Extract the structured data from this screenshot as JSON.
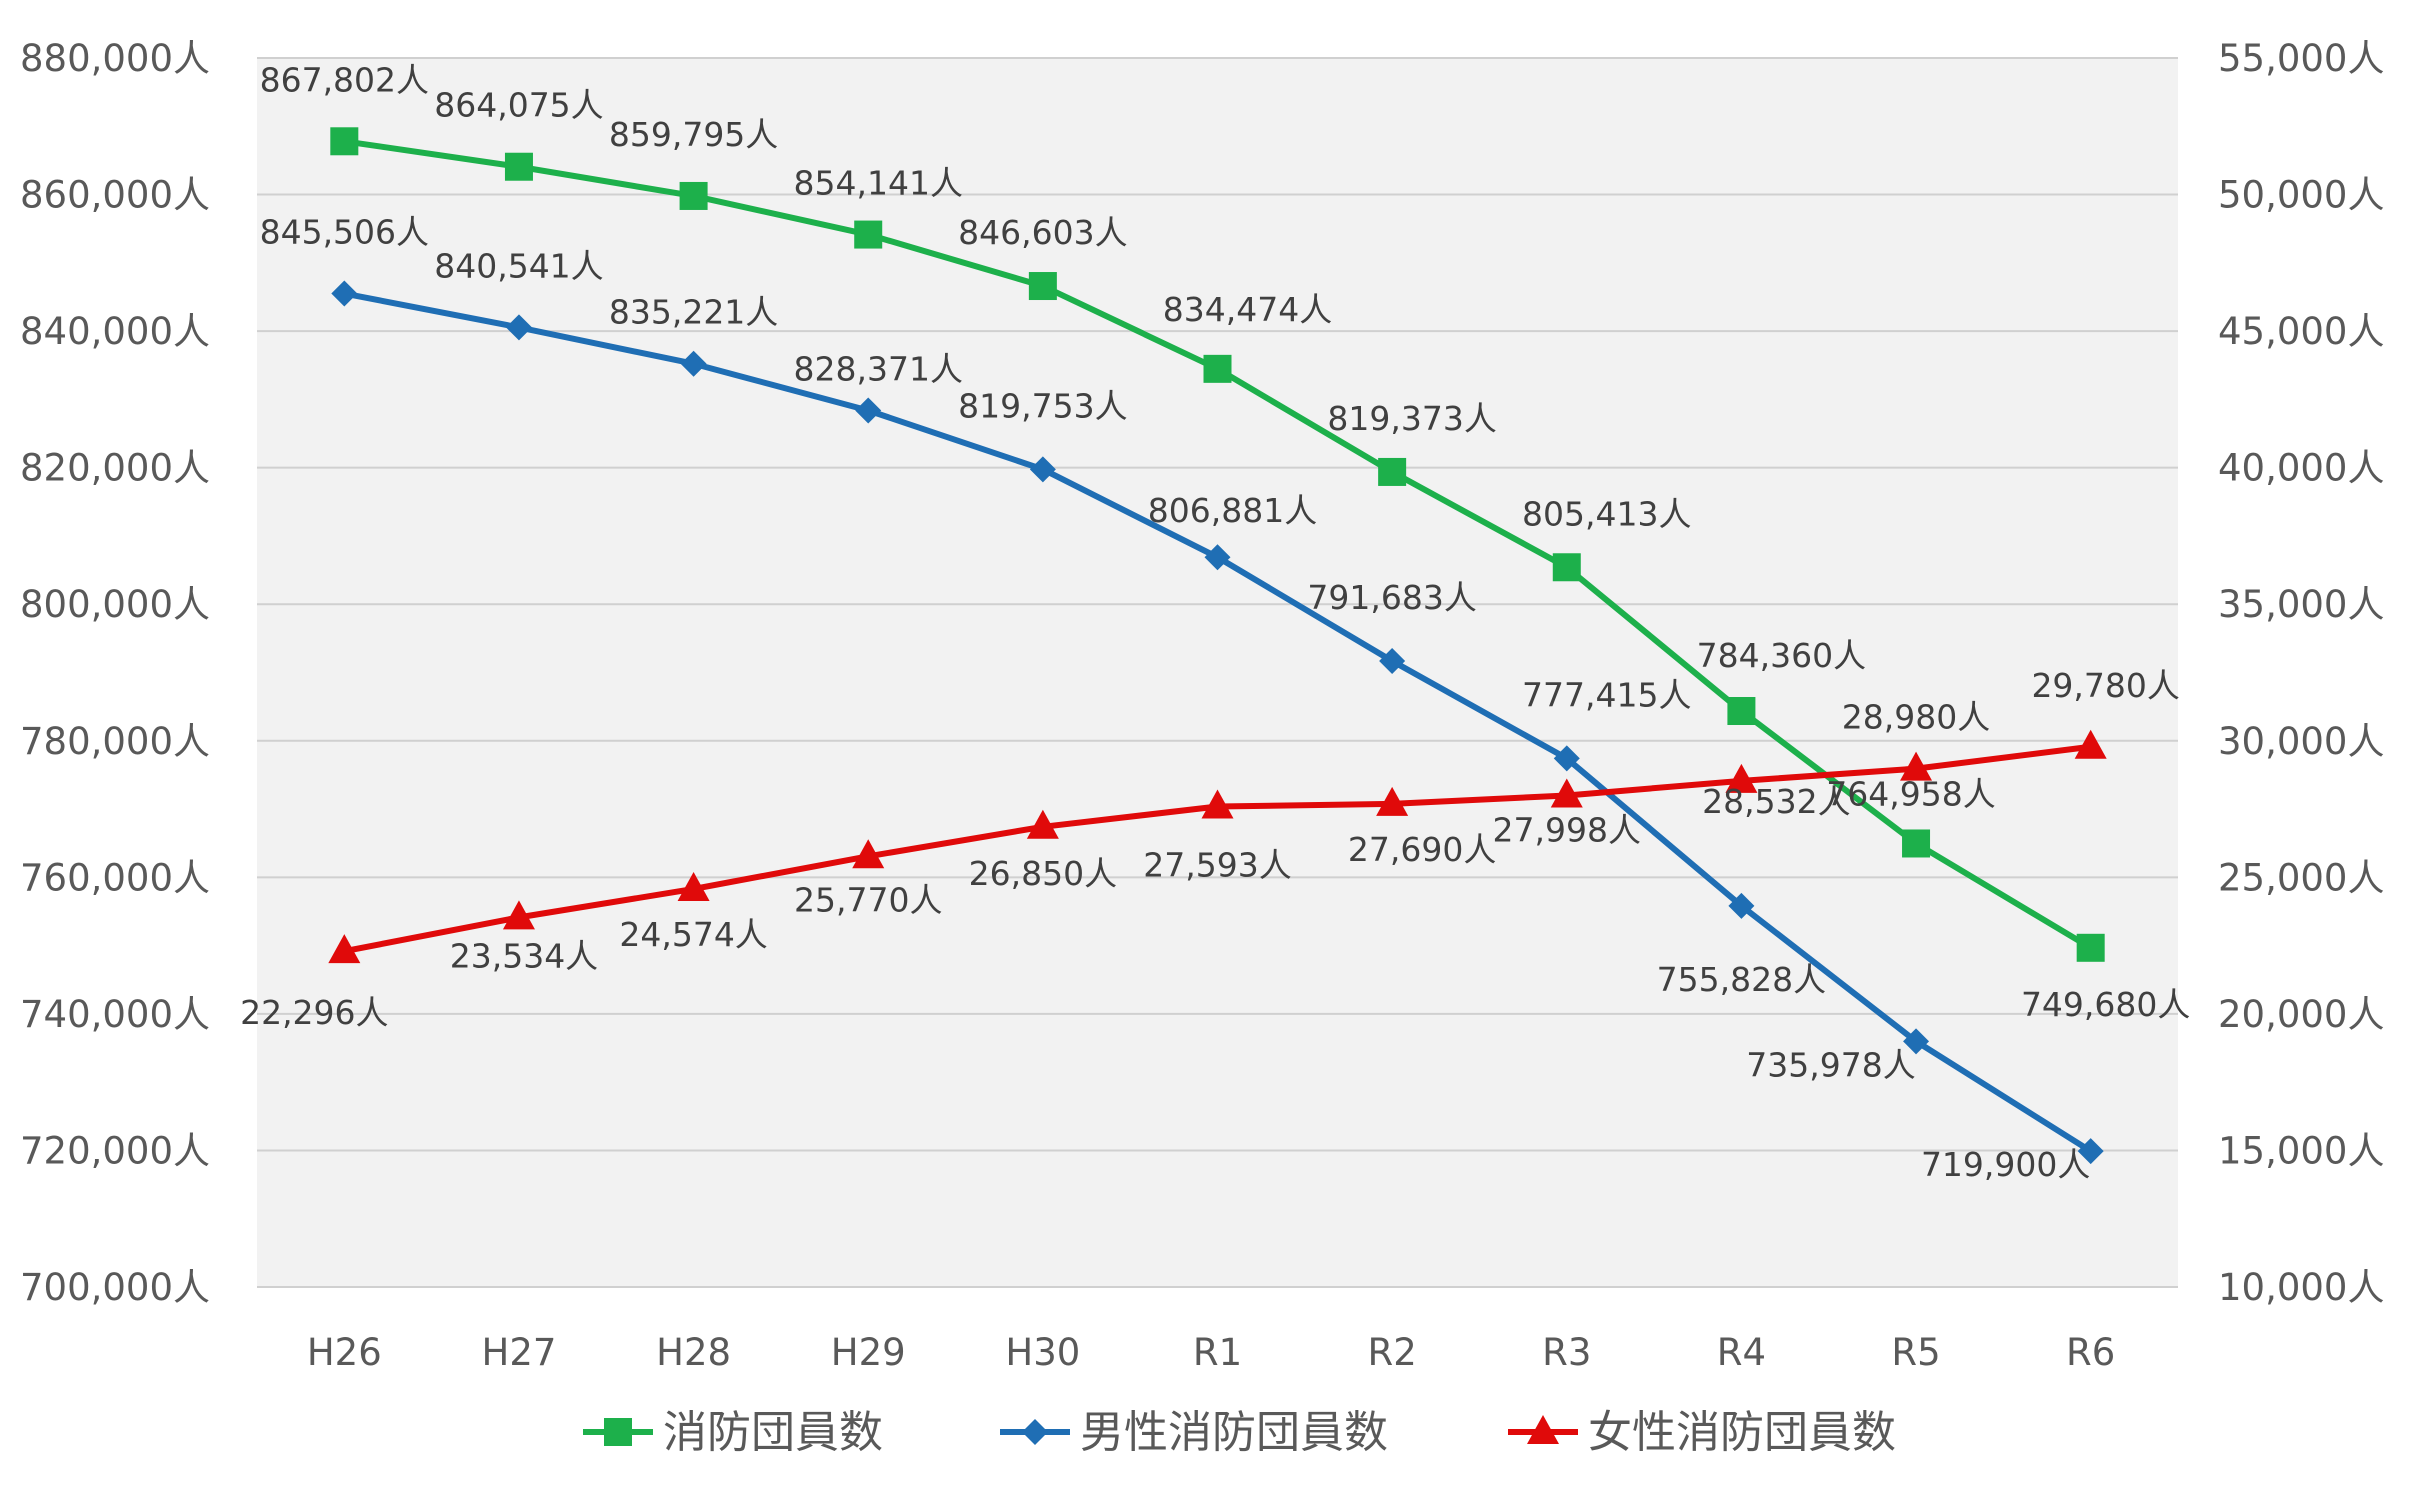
{
  "chart_data": {
    "type": "line",
    "title": "",
    "categories": [
      "H26",
      "H27",
      "H28",
      "H29",
      "H30",
      "R1",
      "R2",
      "R3",
      "R4",
      "R5",
      "R6"
    ],
    "unit_suffix": "人",
    "y_left": {
      "min": 700000,
      "max": 880000,
      "step": 20000,
      "tick_labels": [
        "700,000人",
        "720,000人",
        "740,000人",
        "760,000人",
        "780,000人",
        "800,000人",
        "820,000人",
        "840,000人",
        "860,000人",
        "880,000人"
      ]
    },
    "y_right": {
      "min": 10000,
      "max": 55000,
      "step": 5000,
      "tick_labels": [
        "10,000人",
        "15,000人",
        "20,000人",
        "25,000人",
        "30,000人",
        "35,000人",
        "40,000人",
        "45,000人",
        "50,000人",
        "55,000人"
      ]
    },
    "grid": true,
    "legend_position": "bottom",
    "series": [
      {
        "name": "消防団員数",
        "axis": "left",
        "color": "#1DB04B",
        "marker": "square",
        "values": [
          867802,
          864075,
          859795,
          854141,
          846603,
          834474,
          819373,
          805413,
          784360,
          764958,
          749680
        ],
        "labels": [
          "867,802人",
          "864,075人",
          "859,795人",
          "854,141人",
          "846,603人",
          "834,474人",
          "819,373人",
          "805,413人",
          "784,360人",
          "764,958人",
          "749,680人"
        ]
      },
      {
        "name": "男性消防団員数",
        "axis": "left",
        "color": "#1F6EB4",
        "marker": "diamond",
        "values": [
          845506,
          840541,
          835221,
          828371,
          819753,
          806881,
          791683,
          777415,
          755828,
          735978,
          719900
        ],
        "labels": [
          "845,506人",
          "840,541人",
          "835,221人",
          "828,371人",
          "819,753人",
          "806,881人",
          "791,683人",
          "777,415人",
          "755,828人",
          "735,978人",
          "719,900人"
        ]
      },
      {
        "name": "女性消防団員数",
        "axis": "right",
        "color": "#E00A0A",
        "marker": "triangle",
        "values": [
          22296,
          23534,
          24574,
          25770,
          26850,
          27593,
          27690,
          27998,
          28532,
          28980,
          29780
        ],
        "labels": [
          "22,296人",
          "23,534人",
          "24,574人",
          "25,770人",
          "26,850人",
          "27,593人",
          "27,690人",
          "27,998人",
          "28,532人",
          "28,980人",
          "29,780人"
        ]
      }
    ]
  }
}
